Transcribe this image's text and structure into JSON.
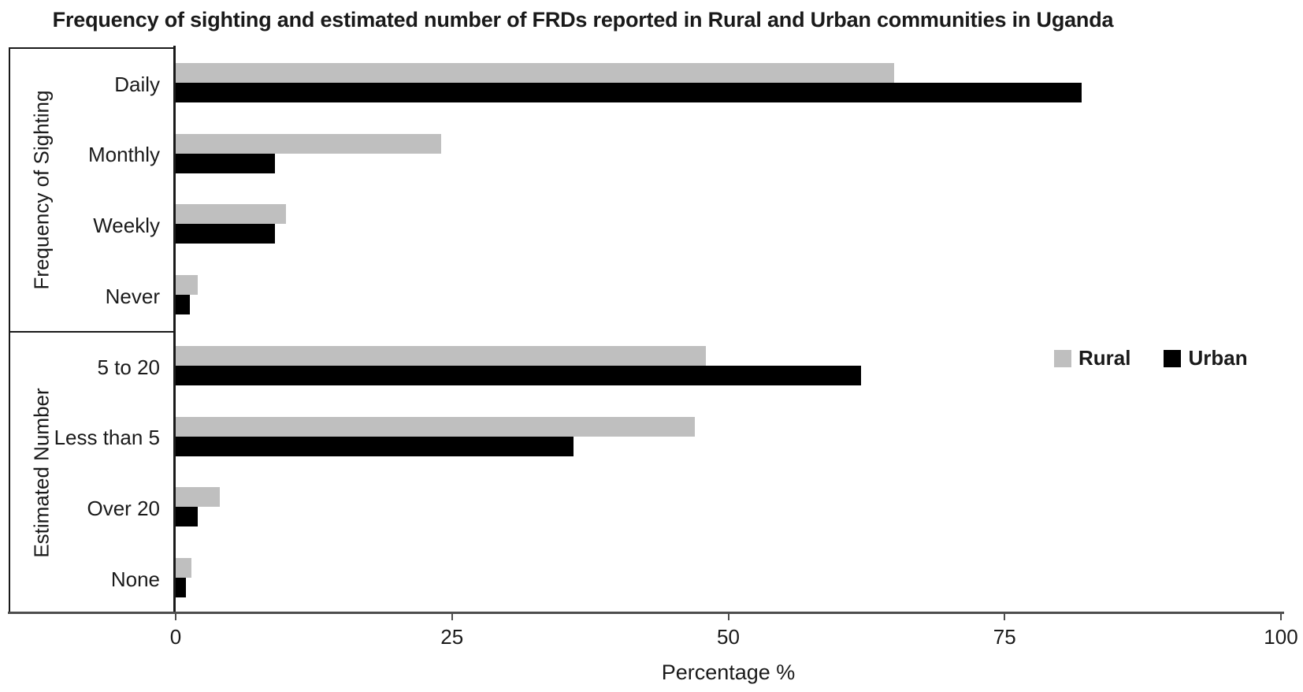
{
  "chart_data": {
    "type": "bar",
    "orientation": "horizontal",
    "title": "Frequency of sighting and estimated number of FRDs reported in Rural and Urban communities in Uganda",
    "xlabel": "Percentage %",
    "xlim": [
      0,
      100
    ],
    "xticks": [
      0,
      25,
      50,
      75,
      100
    ],
    "grid": false,
    "legend_position": "middle-right",
    "categories": [
      "Daily",
      "Monthly",
      "Weekly",
      "Never",
      "5 to 20",
      "Less than 5",
      "Over 20",
      "None"
    ],
    "groups": [
      {
        "label": "Frequency of Sighting",
        "categories": [
          "Daily",
          "Monthly",
          "Weekly",
          "Never"
        ]
      },
      {
        "label": "Estimated Number",
        "categories": [
          "5 to 20",
          "Less than 5",
          "Over 20",
          "None"
        ]
      }
    ],
    "series": [
      {
        "name": "Rural",
        "color": "#bfbfbf",
        "values": [
          65,
          24,
          10,
          2,
          48,
          47,
          4,
          1.4
        ]
      },
      {
        "name": "Urban",
        "color": "#000000",
        "values": [
          82,
          9,
          9,
          1.3,
          62,
          36,
          2,
          0.9
        ]
      }
    ]
  },
  "colors": {
    "axis_line": "#4d4d4d",
    "box_line": "#1a1a1a"
  }
}
